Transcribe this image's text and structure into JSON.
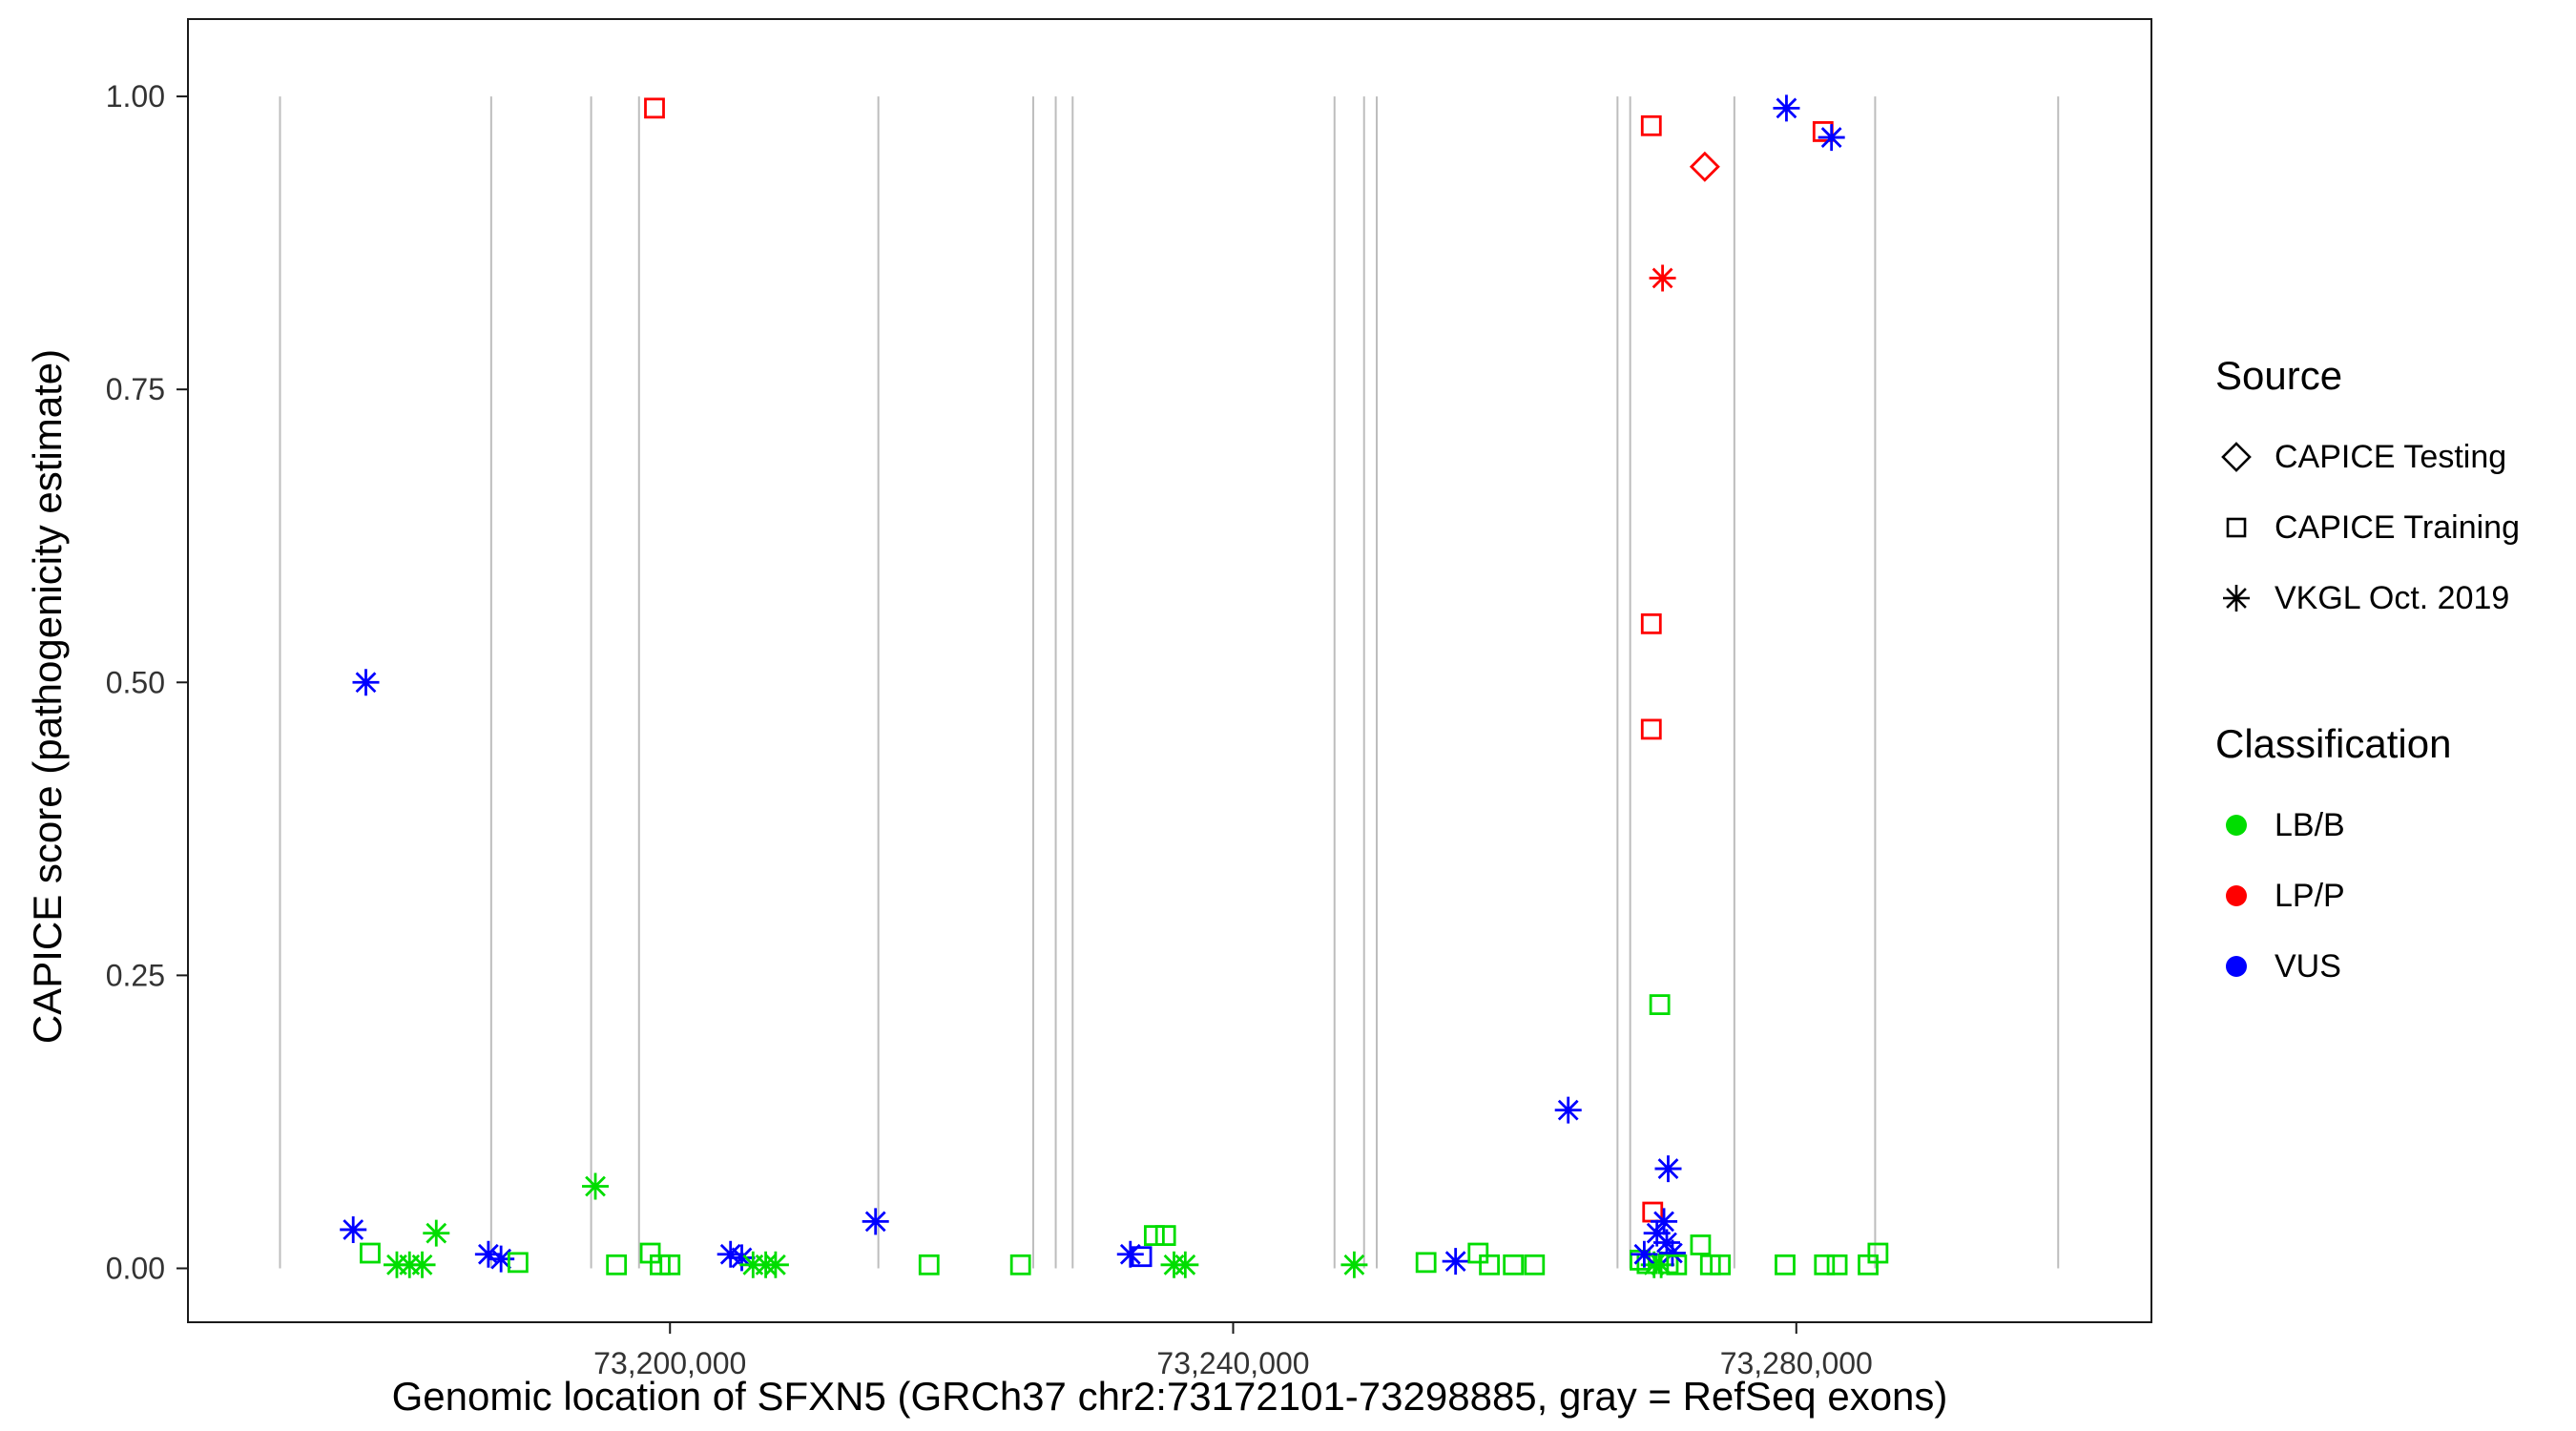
{
  "legend": {
    "source": {
      "title": "Source",
      "items": [
        {
          "label": "CAPICE Testing",
          "symbol": "diamond-open"
        },
        {
          "label": "CAPICE Training",
          "symbol": "square-open"
        },
        {
          "label": "VKGL Oct. 2019",
          "symbol": "asterisk"
        }
      ]
    },
    "classification": {
      "title": "Classification",
      "items": [
        {
          "label": "LB/B",
          "color": "#00DD00"
        },
        {
          "label": "LP/P",
          "color": "#FF0000"
        },
        {
          "label": "VUS",
          "color": "#0000FF"
        }
      ]
    }
  },
  "chart_data": {
    "type": "scatter",
    "x_label": "Genomic location of SFXN5 (GRCh37 chr2:73172101-73298885, gray = RefSeq exons)",
    "y_label": "CAPICE score (pathogenicity estimate)",
    "x_domain": [
      73165762,
      73305224
    ],
    "y_domain": [
      -0.046,
      1.066
    ],
    "grid": "off",
    "legend_position": "right",
    "x_ticks": [
      {
        "value": 73200000,
        "label": "73,200,000"
      },
      {
        "value": 73240000,
        "label": "73,240,000"
      },
      {
        "value": 73280000,
        "label": "73,280,000"
      }
    ],
    "y_ticks": [
      {
        "value": 0.0,
        "label": "0.00"
      },
      {
        "value": 0.25,
        "label": "0.25"
      },
      {
        "value": 0.5,
        "label": "0.50"
      },
      {
        "value": 0.75,
        "label": "0.75"
      },
      {
        "value": 1.0,
        "label": "1.00"
      }
    ],
    "colors": {
      "LB/B": "#00DD00",
      "LP/P": "#FF0000",
      "VUS": "#0000FF",
      "exon": "#BDBDBD"
    },
    "exon_positions": [
      73172300,
      73187300,
      73194400,
      73197800,
      73214800,
      73225800,
      73227400,
      73228600,
      73247200,
      73249300,
      73250200,
      73267300,
      73268200,
      73275600,
      73285600,
      73298600
    ],
    "points": [
      {
        "x": 73198900,
        "y": 0.99,
        "source": "CAPICE Training",
        "classification": "LP/P"
      },
      {
        "x": 73178400,
        "y": 0.5,
        "source": "VKGL Oct. 2019",
        "classification": "VUS"
      },
      {
        "x": 73273500,
        "y": 0.94,
        "source": "CAPICE Testing",
        "classification": "LP/P"
      },
      {
        "x": 73270500,
        "y": 0.845,
        "source": "VKGL Oct. 2019",
        "classification": "LP/P"
      },
      {
        "x": 73279300,
        "y": 0.99,
        "source": "VKGL Oct. 2019",
        "classification": "VUS"
      },
      {
        "x": 73281900,
        "y": 0.97,
        "source": "CAPICE Training",
        "classification": "LP/P"
      },
      {
        "x": 73282500,
        "y": 0.965,
        "source": "VKGL Oct. 2019",
        "classification": "VUS"
      },
      {
        "x": 73269700,
        "y": 0.975,
        "source": "CAPICE Training",
        "classification": "LP/P"
      },
      {
        "x": 73269700,
        "y": 0.55,
        "source": "CAPICE Training",
        "classification": "LP/P"
      },
      {
        "x": 73269700,
        "y": 0.46,
        "source": "CAPICE Training",
        "classification": "LP/P"
      },
      {
        "x": 73270300,
        "y": 0.225,
        "source": "CAPICE Training",
        "classification": "LB/B"
      },
      {
        "x": 73263800,
        "y": 0.135,
        "source": "VKGL Oct. 2019",
        "classification": "VUS"
      },
      {
        "x": 73270900,
        "y": 0.085,
        "source": "VKGL Oct. 2019",
        "classification": "VUS"
      },
      {
        "x": 73269800,
        "y": 0.048,
        "source": "CAPICE Training",
        "classification": "LP/P"
      },
      {
        "x": 73270600,
        "y": 0.04,
        "source": "VKGL Oct. 2019",
        "classification": "VUS"
      },
      {
        "x": 73270100,
        "y": 0.03,
        "source": "VKGL Oct. 2019",
        "classification": "VUS"
      },
      {
        "x": 73270800,
        "y": 0.022,
        "source": "VKGL Oct. 2019",
        "classification": "VUS"
      },
      {
        "x": 73268900,
        "y": 0.007,
        "source": "CAPICE Training",
        "classification": "LB/B"
      },
      {
        "x": 73269400,
        "y": 0.004,
        "source": "CAPICE Training",
        "classification": "LB/B"
      },
      {
        "x": 73269900,
        "y": 0.003,
        "source": "VKGL Oct. 2019",
        "classification": "LB/B"
      },
      {
        "x": 73269200,
        "y": 0.012,
        "source": "VKGL Oct. 2019",
        "classification": "VUS"
      },
      {
        "x": 73270400,
        "y": 0.003,
        "source": "VKGL Oct. 2019",
        "classification": "LB/B"
      },
      {
        "x": 73270900,
        "y": 0.004,
        "source": "CAPICE Training",
        "classification": "LB/B"
      },
      {
        "x": 73271200,
        "y": 0.013,
        "source": "VKGL Oct. 2019",
        "classification": "VUS"
      },
      {
        "x": 73271500,
        "y": 0.003,
        "source": "CAPICE Training",
        "classification": "LB/B"
      },
      {
        "x": 73177500,
        "y": 0.033,
        "source": "VKGL Oct. 2019",
        "classification": "VUS"
      },
      {
        "x": 73178700,
        "y": 0.013,
        "source": "CAPICE Training",
        "classification": "LB/B"
      },
      {
        "x": 73180600,
        "y": 0.003,
        "source": "VKGL Oct. 2019",
        "classification": "LB/B"
      },
      {
        "x": 73181500,
        "y": 0.003,
        "source": "VKGL Oct. 2019",
        "classification": "LB/B"
      },
      {
        "x": 73183400,
        "y": 0.03,
        "source": "VKGL Oct. 2019",
        "classification": "LB/B"
      },
      {
        "x": 73182400,
        "y": 0.003,
        "source": "VKGL Oct. 2019",
        "classification": "LB/B"
      },
      {
        "x": 73187100,
        "y": 0.012,
        "source": "VKGL Oct. 2019",
        "classification": "VUS"
      },
      {
        "x": 73188000,
        "y": 0.008,
        "source": "VKGL Oct. 2019",
        "classification": "VUS"
      },
      {
        "x": 73189200,
        "y": 0.005,
        "source": "CAPICE Training",
        "classification": "LB/B"
      },
      {
        "x": 73194700,
        "y": 0.07,
        "source": "VKGL Oct. 2019",
        "classification": "LB/B"
      },
      {
        "x": 73196200,
        "y": 0.003,
        "source": "CAPICE Training",
        "classification": "LB/B"
      },
      {
        "x": 73198600,
        "y": 0.013,
        "source": "CAPICE Training",
        "classification": "LB/B"
      },
      {
        "x": 73199300,
        "y": 0.003,
        "source": "CAPICE Training",
        "classification": "LB/B"
      },
      {
        "x": 73200000,
        "y": 0.003,
        "source": "CAPICE Training",
        "classification": "LB/B"
      },
      {
        "x": 73204300,
        "y": 0.012,
        "source": "VKGL Oct. 2019",
        "classification": "VUS"
      },
      {
        "x": 73205100,
        "y": 0.009,
        "source": "VKGL Oct. 2019",
        "classification": "VUS"
      },
      {
        "x": 73205900,
        "y": 0.003,
        "source": "VKGL Oct. 2019",
        "classification": "LB/B"
      },
      {
        "x": 73206800,
        "y": 0.003,
        "source": "VKGL Oct. 2019",
        "classification": "LB/B"
      },
      {
        "x": 73207500,
        "y": 0.003,
        "source": "VKGL Oct. 2019",
        "classification": "LB/B"
      },
      {
        "x": 73214600,
        "y": 0.04,
        "source": "VKGL Oct. 2019",
        "classification": "VUS"
      },
      {
        "x": 73218400,
        "y": 0.003,
        "source": "CAPICE Training",
        "classification": "LB/B"
      },
      {
        "x": 73224900,
        "y": 0.003,
        "source": "CAPICE Training",
        "classification": "LB/B"
      },
      {
        "x": 73232700,
        "y": 0.012,
        "source": "VKGL Oct. 2019",
        "classification": "VUS"
      },
      {
        "x": 73233500,
        "y": 0.01,
        "source": "CAPICE Training",
        "classification": "VUS"
      },
      {
        "x": 73234400,
        "y": 0.028,
        "source": "CAPICE Training",
        "classification": "LB/B"
      },
      {
        "x": 73235200,
        "y": 0.028,
        "source": "CAPICE Training",
        "classification": "LB/B"
      },
      {
        "x": 73235800,
        "y": 0.003,
        "source": "VKGL Oct. 2019",
        "classification": "LB/B"
      },
      {
        "x": 73236600,
        "y": 0.003,
        "source": "VKGL Oct. 2019",
        "classification": "LB/B"
      },
      {
        "x": 73248600,
        "y": 0.003,
        "source": "VKGL Oct. 2019",
        "classification": "LB/B"
      },
      {
        "x": 73253700,
        "y": 0.005,
        "source": "CAPICE Training",
        "classification": "LB/B"
      },
      {
        "x": 73255800,
        "y": 0.006,
        "source": "VKGL Oct. 2019",
        "classification": "VUS"
      },
      {
        "x": 73257400,
        "y": 0.013,
        "source": "CAPICE Training",
        "classification": "LB/B"
      },
      {
        "x": 73258200,
        "y": 0.003,
        "source": "CAPICE Training",
        "classification": "LB/B"
      },
      {
        "x": 73259900,
        "y": 0.003,
        "source": "CAPICE Training",
        "classification": "LB/B"
      },
      {
        "x": 73261400,
        "y": 0.003,
        "source": "CAPICE Training",
        "classification": "LB/B"
      },
      {
        "x": 73273200,
        "y": 0.02,
        "source": "CAPICE Training",
        "classification": "LB/B"
      },
      {
        "x": 73273900,
        "y": 0.003,
        "source": "CAPICE Training",
        "classification": "LB/B"
      },
      {
        "x": 73274600,
        "y": 0.003,
        "source": "CAPICE Training",
        "classification": "LB/B"
      },
      {
        "x": 73279200,
        "y": 0.003,
        "source": "CAPICE Training",
        "classification": "LB/B"
      },
      {
        "x": 73282000,
        "y": 0.003,
        "source": "CAPICE Training",
        "classification": "LB/B"
      },
      {
        "x": 73282900,
        "y": 0.003,
        "source": "CAPICE Training",
        "classification": "LB/B"
      },
      {
        "x": 73285100,
        "y": 0.003,
        "source": "CAPICE Training",
        "classification": "LB/B"
      },
      {
        "x": 73285800,
        "y": 0.013,
        "source": "CAPICE Training",
        "classification": "LB/B"
      }
    ]
  }
}
